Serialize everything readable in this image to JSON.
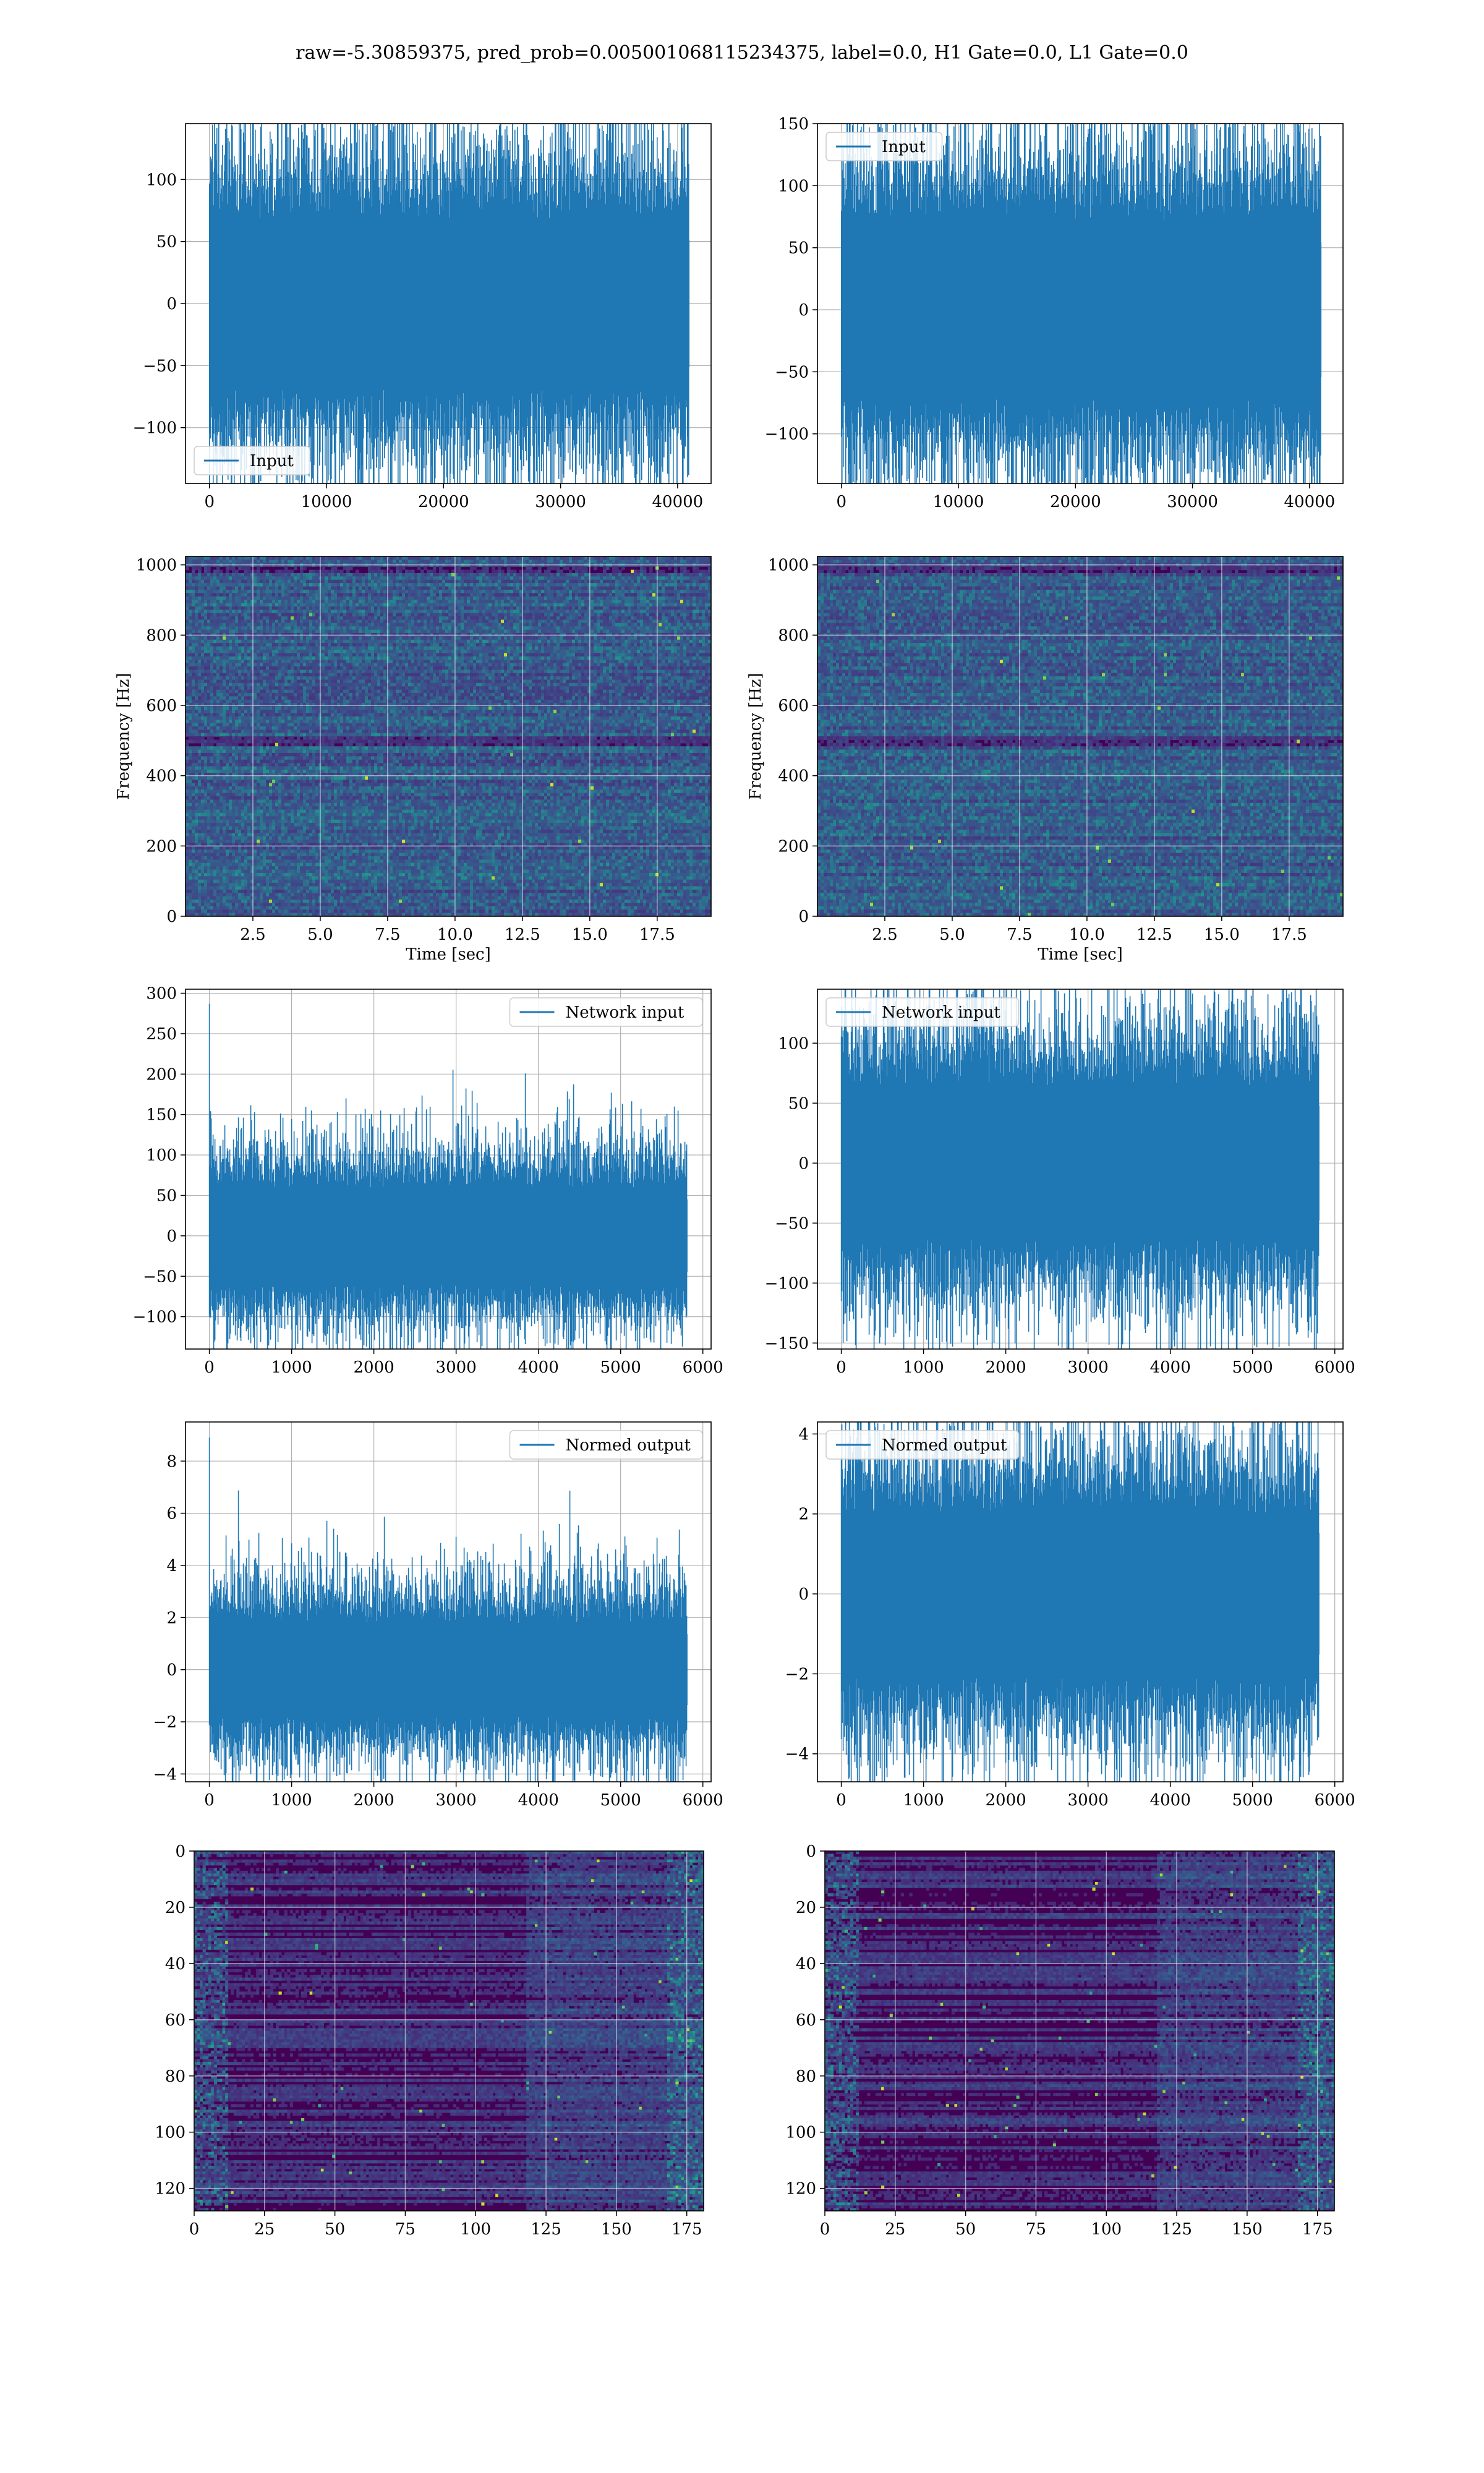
{
  "title": "raw=-5.30859375, pred_prob=0.005001068115234375, label=0.0, H1 Gate=0.0, L1 Gate=0.0",
  "colors": {
    "line": "#1f77b4",
    "grid": "#b0b0b0",
    "spec_dark": "#440154",
    "spec_bright": "#fde725"
  },
  "chart_data": [
    {
      "id": "ts-h1",
      "type": "line",
      "series": [
        {
          "name": "Input"
        }
      ],
      "legend": "lower-left",
      "n_points": 40960,
      "xlim": [
        -2048,
        42860
      ],
      "ylim": [
        -145,
        145
      ],
      "xticks": [
        0,
        10000,
        20000,
        30000,
        40000
      ],
      "yticks": [
        -100,
        -50,
        0,
        50,
        100
      ],
      "xlabel": "",
      "ylabel": "",
      "grid": true,
      "signal": {
        "amp": 32,
        "x_end": 40960,
        "peaks": [
          [
            22600,
            136
          ],
          [
            24000,
            -128
          ],
          [
            4700,
            -124
          ],
          [
            1200,
            -118
          ]
        ]
      }
    },
    {
      "id": "ts-l1",
      "type": "line",
      "series": [
        {
          "name": "Input"
        }
      ],
      "legend": "upper-left",
      "n_points": 40960,
      "xlim": [
        -2048,
        42860
      ],
      "ylim": [
        -140,
        150
      ],
      "xticks": [
        0,
        10000,
        20000,
        30000,
        40000
      ],
      "yticks": [
        -100,
        -50,
        0,
        50,
        100,
        150
      ],
      "xlabel": "",
      "ylabel": "",
      "grid": true,
      "signal": {
        "amp": 34,
        "x_end": 40960,
        "peaks": [
          [
            36200,
            138
          ],
          [
            6000,
            -128
          ],
          [
            36800,
            -128
          ],
          [
            33200,
            -120
          ]
        ]
      }
    },
    {
      "id": "spec-h1",
      "type": "heatmap",
      "colormap": "viridis",
      "xlim": [
        0,
        19.5
      ],
      "ylim": [
        0,
        1024
      ],
      "xticks": [
        2.5,
        5.0,
        7.5,
        10.0,
        12.5,
        15.0,
        17.5
      ],
      "xtick_labels": [
        "2.5",
        "5.0",
        "7.5",
        "10.0",
        "12.5",
        "15.0",
        "17.5"
      ],
      "yticks": [
        0,
        200,
        400,
        600,
        800,
        1000
      ],
      "xlabel": "Time [sec]",
      "ylabel": "Frequency [Hz]",
      "grid": true
    },
    {
      "id": "spec-l1",
      "type": "heatmap",
      "colormap": "viridis",
      "xlim": [
        0,
        19.5
      ],
      "ylim": [
        0,
        1024
      ],
      "xticks": [
        2.5,
        5.0,
        7.5,
        10.0,
        12.5,
        15.0,
        17.5
      ],
      "xtick_labels": [
        "2.5",
        "5.0",
        "7.5",
        "10.0",
        "12.5",
        "15.0",
        "17.5"
      ],
      "yticks": [
        0,
        200,
        400,
        600,
        800,
        1000
      ],
      "xlabel": "Time [sec]",
      "ylabel": "Frequency [Hz]",
      "grid": true
    },
    {
      "id": "net-h1",
      "type": "line",
      "series": [
        {
          "name": "Network input"
        }
      ],
      "legend": "upper-right",
      "n_points": 5800,
      "xlim": [
        -290,
        6100
      ],
      "ylim": [
        -140,
        305
      ],
      "xticks": [
        0,
        1000,
        2000,
        3000,
        4000,
        5000,
        6000
      ],
      "yticks": [
        -100,
        -50,
        0,
        50,
        100,
        150,
        200,
        250,
        300
      ],
      "xlabel": "",
      "ylabel": "",
      "grid": true,
      "signal": {
        "amp": 28,
        "x_end": 5800,
        "peaks": [
          [
            0,
            287
          ],
          [
            2050,
            134
          ],
          [
            680,
            122
          ],
          [
            450,
            -118
          ],
          [
            3600,
            -100
          ],
          [
            230,
            -100
          ]
        ]
      }
    },
    {
      "id": "net-l1",
      "type": "line",
      "series": [
        {
          "name": "Network input"
        }
      ],
      "legend": "upper-left",
      "n_points": 5800,
      "xlim": [
        -290,
        6100
      ],
      "ylim": [
        -155,
        145
      ],
      "xticks": [
        0,
        1000,
        2000,
        3000,
        4000,
        5000,
        6000
      ],
      "yticks": [
        -150,
        -100,
        -50,
        0,
        50,
        100
      ],
      "xlabel": "",
      "ylabel": "",
      "grid": true,
      "signal": {
        "amp": 30,
        "x_end": 5800,
        "peaks": [
          [
            4070,
            -141
          ],
          [
            4520,
            125
          ],
          [
            5000,
            -126
          ],
          [
            0,
            -115
          ],
          [
            2200,
            110
          ]
        ]
      }
    },
    {
      "id": "norm-h1",
      "type": "line",
      "series": [
        {
          "name": "Normed output"
        }
      ],
      "legend": "upper-right",
      "n_points": 5800,
      "xlim": [
        -290,
        6100
      ],
      "ylim": [
        -4.3,
        9.5
      ],
      "xticks": [
        0,
        1000,
        2000,
        3000,
        4000,
        5000,
        6000
      ],
      "yticks": [
        -4,
        -2,
        0,
        2,
        4,
        6,
        8
      ],
      "xlabel": "",
      "ylabel": "",
      "grid": true,
      "signal": {
        "amp": 0.85,
        "x_end": 5800,
        "peaks": [
          [
            0,
            8.9
          ],
          [
            2050,
            4.1
          ],
          [
            680,
            3.8
          ],
          [
            450,
            -3.7
          ],
          [
            3600,
            -3.1
          ]
        ]
      }
    },
    {
      "id": "norm-l1",
      "type": "line",
      "series": [
        {
          "name": "Normed output"
        }
      ],
      "legend": "upper-left",
      "n_points": 5800,
      "xlim": [
        -290,
        6100
      ],
      "ylim": [
        -4.7,
        4.3
      ],
      "xticks": [
        0,
        1000,
        2000,
        3000,
        4000,
        5000,
        6000
      ],
      "yticks": [
        -4,
        -2,
        0,
        2,
        4
      ],
      "xlabel": "",
      "ylabel": "",
      "grid": true,
      "signal": {
        "amp": 0.95,
        "x_end": 5800,
        "peaks": [
          [
            4070,
            -4.4
          ],
          [
            4520,
            3.8
          ],
          [
            5000,
            -3.9
          ],
          [
            0,
            -3.5
          ],
          [
            3170,
            3.6
          ]
        ]
      }
    },
    {
      "id": "feat-h1",
      "type": "heatmap",
      "colormap": "viridis",
      "xlim": [
        0,
        181
      ],
      "ylim": [
        128,
        0
      ],
      "xticks": [
        0,
        25,
        50,
        75,
        100,
        125,
        150,
        175
      ],
      "yticks": [
        0,
        20,
        40,
        60,
        80,
        100,
        120
      ],
      "xlabel": "",
      "ylabel": "",
      "grid": true
    },
    {
      "id": "feat-l1",
      "type": "heatmap",
      "colormap": "viridis",
      "xlim": [
        0,
        181
      ],
      "ylim": [
        128,
        0
      ],
      "xticks": [
        0,
        25,
        50,
        75,
        100,
        125,
        150,
        175
      ],
      "yticks": [
        0,
        20,
        40,
        60,
        80,
        100,
        120
      ],
      "xlabel": "",
      "ylabel": "",
      "grid": true
    }
  ]
}
